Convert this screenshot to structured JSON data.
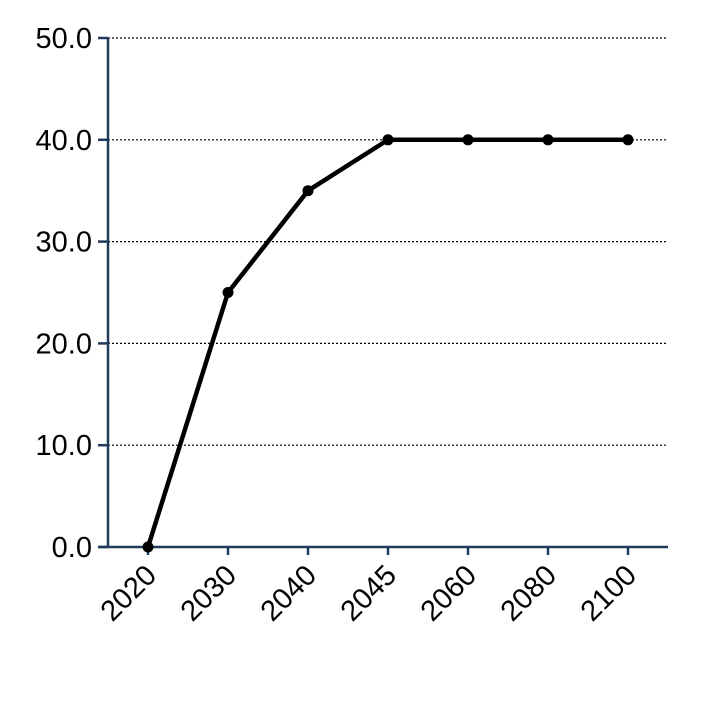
{
  "chart_data": {
    "type": "line",
    "categories": [
      "2020",
      "2030",
      "2040",
      "2045",
      "2060",
      "2080",
      "2100"
    ],
    "series": [
      {
        "values": [
          0,
          25,
          35,
          40,
          40,
          40,
          40
        ]
      }
    ],
    "yticks": [
      "0.0",
      "10.0",
      "20.0",
      "30.0",
      "40.0",
      "50.0"
    ],
    "ylim": [
      0,
      50
    ],
    "grid": true,
    "legend": "none",
    "title": "",
    "xlabel": "",
    "ylabel": "",
    "colors": {
      "line": "#000000",
      "axis": "#1f3a5a",
      "grid": "#000000"
    }
  }
}
